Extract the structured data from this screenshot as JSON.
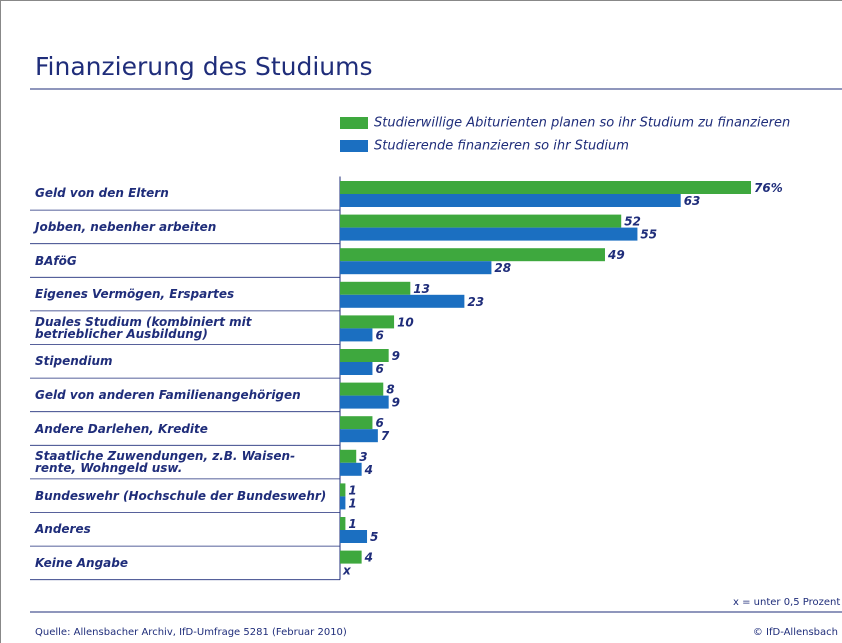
{
  "chart_data": {
    "type": "bar",
    "orientation": "horizontal",
    "title": "Finanzierung des Studiums",
    "categories": [
      "Geld von den Eltern",
      "Jobben, nebenher arbeiten",
      "BAföG",
      "Eigenes Vermögen, Erspartes",
      "Duales Studium (kombiniert mit\nbetrieblicher Ausbildung)",
      "Stipendium",
      "Geld von anderen Familienangehörigen",
      "Andere Darlehen, Kredite",
      "Staatliche Zuwendungen, z.B. Waisen-\nrente, Wohngeld usw.",
      "Bundeswehr (Hochschule der Bundeswehr)",
      "Anderes",
      "Keine Angabe"
    ],
    "series": [
      {
        "name": "Studierwillige Abiturienten planen so ihr Studium zu finanzieren",
        "color": "#3ea83e",
        "values": [
          76,
          52,
          49,
          13,
          10,
          9,
          8,
          6,
          3,
          1,
          1,
          4
        ],
        "value_labels": [
          "76%",
          "52",
          "49",
          "13",
          "10",
          "9",
          "8",
          "6",
          "3",
          "1",
          "1",
          "4"
        ]
      },
      {
        "name": "Studierende finanzieren so ihr Studium",
        "color": "#1b6fc1",
        "values": [
          63,
          55,
          28,
          23,
          6,
          6,
          9,
          7,
          4,
          1,
          5,
          null
        ],
        "value_labels": [
          "63",
          "55",
          "28",
          "23",
          "6",
          "6",
          "9",
          "7",
          "4",
          "1",
          "5",
          "x"
        ]
      }
    ],
    "footnote": "x = unter 0,5 Prozent",
    "source": "Quelle: Allensbacher Archiv, IfD-Umfrage 5281 (Februar 2010)",
    "copyright": "© IfD-Allensbach"
  }
}
